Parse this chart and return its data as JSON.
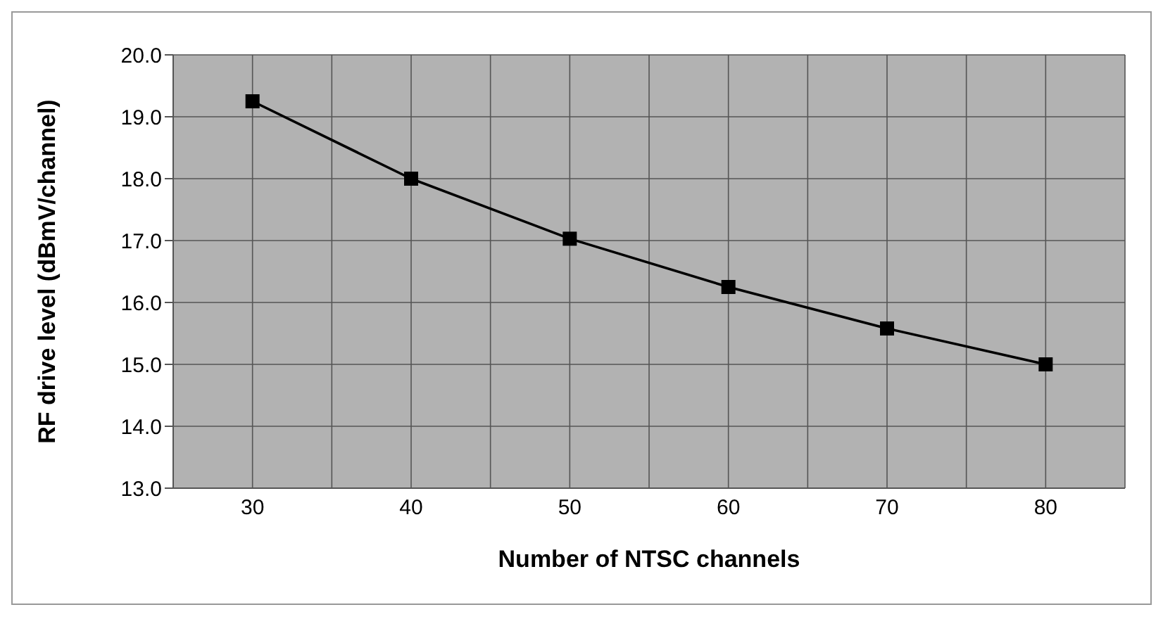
{
  "chart_data": {
    "type": "line",
    "xlabel": "Number of NTSC channels",
    "ylabel": "RF drive level (dBmV/channel)",
    "x": [
      30,
      40,
      50,
      60,
      70,
      80
    ],
    "series": [
      {
        "color": "#000000",
        "values": [
          19.25,
          18.0,
          17.03,
          16.25,
          15.58,
          15.0
        ]
      }
    ],
    "xlim": [
      25,
      85
    ],
    "xticks": [
      {
        "value": 25,
        "label": null
      },
      30,
      {
        "value": 35,
        "label": null
      },
      40,
      {
        "value": 45,
        "label": null
      },
      50,
      {
        "value": 55,
        "label": null
      },
      60,
      {
        "value": 65,
        "label": null
      },
      70,
      {
        "value": 75,
        "label": null
      },
      80,
      {
        "value": 85,
        "label": null
      }
    ],
    "ylim": [
      13,
      20
    ],
    "yticks": [
      {
        "value": 13,
        "label": "13.0"
      },
      {
        "value": 14,
        "label": "14.0"
      },
      {
        "value": 15,
        "label": "15.0"
      },
      {
        "value": 16,
        "label": "16.0"
      },
      {
        "value": 17,
        "label": "17.0"
      },
      {
        "value": 18,
        "label": "18.0"
      },
      {
        "value": 19,
        "label": "19.0"
      },
      {
        "value": 20,
        "label": "20.0"
      }
    ],
    "grid": true,
    "marker": "square",
    "line_style": "solid",
    "legend": false
  }
}
